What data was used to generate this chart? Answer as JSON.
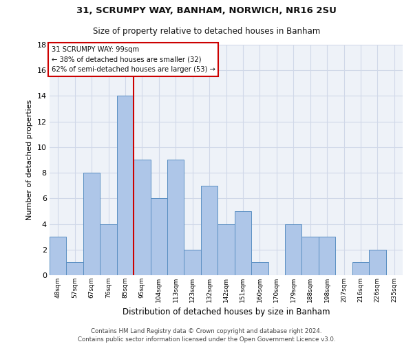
{
  "title_line1": "31, SCRUMPY WAY, BANHAM, NORWICH, NR16 2SU",
  "title_line2": "Size of property relative to detached houses in Banham",
  "xlabel": "Distribution of detached houses by size in Banham",
  "ylabel": "Number of detached properties",
  "categories": [
    "48sqm",
    "57sqm",
    "67sqm",
    "76sqm",
    "85sqm",
    "95sqm",
    "104sqm",
    "113sqm",
    "123sqm",
    "132sqm",
    "142sqm",
    "151sqm",
    "160sqm",
    "170sqm",
    "179sqm",
    "188sqm",
    "198sqm",
    "207sqm",
    "216sqm",
    "226sqm",
    "235sqm"
  ],
  "values": [
    3,
    1,
    8,
    4,
    14,
    9,
    6,
    9,
    2,
    7,
    4,
    5,
    1,
    0,
    4,
    3,
    3,
    0,
    1,
    2,
    0
  ],
  "bar_color": "#aec6e8",
  "bar_edge_color": "#5a8fc2",
  "vline_x": 4.5,
  "vline_color": "#cc0000",
  "annotation_text": "31 SCRUMPY WAY: 99sqm\n← 38% of detached houses are smaller (32)\n62% of semi-detached houses are larger (53) →",
  "annotation_box_color": "#ffffff",
  "annotation_box_edge": "#cc0000",
  "ylim": [
    0,
    18
  ],
  "yticks": [
    0,
    2,
    4,
    6,
    8,
    10,
    12,
    14,
    16,
    18
  ],
  "footnote": "Contains HM Land Registry data © Crown copyright and database right 2024.\nContains public sector information licensed under the Open Government Licence v3.0.",
  "grid_color": "#d0d8e8",
  "background_color": "#eef2f8",
  "fig_bg_color": "#ffffff"
}
